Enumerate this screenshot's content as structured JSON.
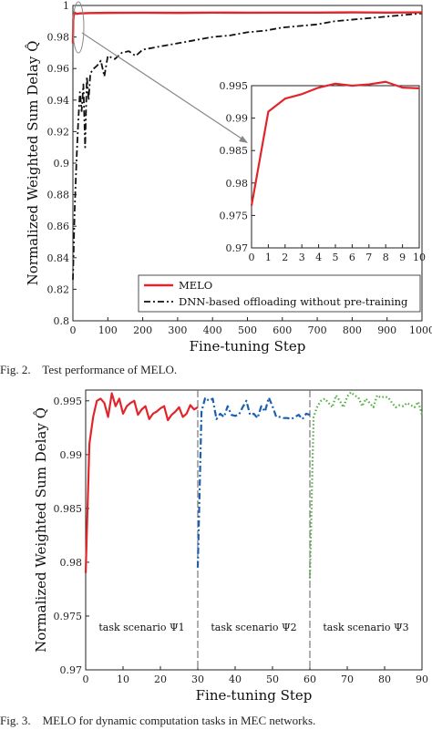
{
  "captions": {
    "fig2": "Fig. 2.    Test performance of MELO.",
    "fig3": "Fig. 3.    MELO for dynamic computation tasks in MEC networks."
  },
  "colors": {
    "melo": "#e2252b",
    "dnn": "#111111",
    "scen1": "#e2252b",
    "scen2": "#1a5fb4",
    "scen3": "#4caf3a",
    "arrow": "#888888",
    "divider": "#777777"
  },
  "chart_data": [
    {
      "type": "line",
      "ylabel": "Normalized Weighted Sum Delay Q̂",
      "xlabel": "Fine-tuning Step",
      "xlim": [
        0,
        1000
      ],
      "ylim": [
        0.8,
        1.0
      ],
      "xticks": [
        0,
        100,
        200,
        300,
        400,
        500,
        600,
        700,
        800,
        900,
        1000
      ],
      "yticks": [
        0.8,
        0.82,
        0.84,
        0.86,
        0.88,
        0.9,
        0.92,
        0.94,
        0.96,
        0.98,
        1
      ],
      "legend": {
        "position": "bottom-right",
        "entries": [
          "MELO",
          "DNN-based offloading without pre-training"
        ]
      },
      "series": [
        {
          "name": "MELO",
          "style": "solid",
          "x": [
            0,
            1,
            2,
            3,
            5,
            10,
            20,
            50,
            100,
            200,
            300,
            400,
            500,
            600,
            700,
            800,
            900,
            1000
          ],
          "values": [
            0.976,
            0.991,
            0.993,
            0.994,
            0.9955,
            0.9947,
            0.995,
            0.9952,
            0.9953,
            0.9954,
            0.9953,
            0.9955,
            0.9954,
            0.9955,
            0.9955,
            0.9956,
            0.9955,
            0.9956
          ]
        },
        {
          "name": "DNN-based offloading without pre-training",
          "style": "dashdot",
          "x": [
            0,
            5,
            10,
            15,
            20,
            25,
            30,
            35,
            40,
            45,
            50,
            60,
            70,
            80,
            90,
            100,
            120,
            140,
            160,
            180,
            200,
            250,
            300,
            350,
            400,
            450,
            500,
            550,
            600,
            650,
            700,
            750,
            800,
            850,
            900,
            950,
            1000
          ],
          "values": [
            0.826,
            0.87,
            0.9,
            0.925,
            0.945,
            0.933,
            0.95,
            0.91,
            0.955,
            0.94,
            0.957,
            0.96,
            0.962,
            0.965,
            0.955,
            0.968,
            0.966,
            0.97,
            0.971,
            0.968,
            0.972,
            0.974,
            0.976,
            0.978,
            0.98,
            0.981,
            0.983,
            0.984,
            0.986,
            0.987,
            0.988,
            0.99,
            0.991,
            0.992,
            0.993,
            0.994,
            0.995
          ]
        }
      ],
      "inset": {
        "xlim": [
          0,
          10
        ],
        "ylim": [
          0.97,
          0.995
        ],
        "xticks": [
          0,
          1,
          2,
          3,
          4,
          5,
          6,
          7,
          8,
          9,
          10
        ],
        "yticks": [
          0.97,
          0.975,
          0.98,
          0.985,
          0.99,
          0.995
        ],
        "series": [
          {
            "name": "MELO",
            "x": [
              0,
              1,
              2,
              3,
              4,
              5,
              6,
              7,
              8,
              9,
              10
            ],
            "values": [
              0.9765,
              0.991,
              0.993,
              0.9937,
              0.9947,
              0.9953,
              0.995,
              0.9952,
              0.9956,
              0.9947,
              0.9946
            ]
          }
        ]
      }
    },
    {
      "type": "line",
      "ylabel": "Normalized Weighted Sum Delay Q̂",
      "xlabel": "Fine-tuning Step",
      "xlim": [
        0,
        90
      ],
      "ylim": [
        0.97,
        0.996
      ],
      "xticks": [
        0,
        10,
        20,
        30,
        40,
        50,
        60,
        70,
        80,
        90
      ],
      "yticks": [
        0.97,
        0.975,
        0.98,
        0.985,
        0.99,
        0.995
      ],
      "dividers": [
        30,
        60
      ],
      "scenario_labels": [
        "task scenario Ψ1",
        "task scenario Ψ2",
        "task scenario Ψ3"
      ],
      "series": [
        {
          "name": "task scenario Ψ1",
          "style": "solid",
          "x": [
            0,
            1,
            2,
            3,
            4,
            5,
            6,
            7,
            8,
            9,
            10,
            11,
            12,
            13,
            14,
            15,
            16,
            17,
            18,
            19,
            20,
            21,
            22,
            23,
            24,
            25,
            26,
            27,
            28,
            29,
            30
          ],
          "values": [
            0.979,
            0.991,
            0.9935,
            0.995,
            0.9952,
            0.9948,
            0.9935,
            0.9957,
            0.9945,
            0.9952,
            0.9938,
            0.9945,
            0.9948,
            0.995,
            0.9937,
            0.9942,
            0.9945,
            0.9933,
            0.9938,
            0.994,
            0.9943,
            0.9945,
            0.9932,
            0.9937,
            0.994,
            0.9944,
            0.9935,
            0.9938,
            0.9946,
            0.9942,
            0.9944
          ]
        },
        {
          "name": "task scenario Ψ2",
          "style": "dashdot",
          "x": [
            30,
            31,
            32,
            33,
            34,
            35,
            36,
            37,
            38,
            39,
            40,
            41,
            42,
            43,
            44,
            45,
            46,
            47,
            48,
            49,
            50,
            51,
            52,
            53,
            54,
            55,
            56,
            57,
            58,
            59,
            60
          ],
          "values": [
            0.9795,
            0.994,
            0.9953,
            0.995,
            0.9952,
            0.9933,
            0.9938,
            0.9935,
            0.9945,
            0.9937,
            0.9936,
            0.9937,
            0.9944,
            0.995,
            0.9937,
            0.9938,
            0.9934,
            0.9945,
            0.994,
            0.9953,
            0.9945,
            0.9935,
            0.9935,
            0.9934,
            0.9934,
            0.9933,
            0.9935,
            0.9937,
            0.9933,
            0.9938,
            0.9937
          ]
        },
        {
          "name": "task scenario Ψ3",
          "style": "dotted",
          "x": [
            60,
            61,
            62,
            63,
            64,
            65,
            66,
            67,
            68,
            69,
            70,
            71,
            72,
            73,
            74,
            75,
            76,
            77,
            78,
            79,
            80,
            81,
            82,
            83,
            84,
            85,
            86,
            87,
            88,
            89,
            90
          ],
          "values": [
            0.9785,
            0.9935,
            0.9945,
            0.995,
            0.9952,
            0.9948,
            0.9944,
            0.9955,
            0.995,
            0.9944,
            0.9954,
            0.9958,
            0.9955,
            0.9953,
            0.9945,
            0.9952,
            0.9948,
            0.9944,
            0.9955,
            0.9953,
            0.9954,
            0.9953,
            0.9948,
            0.9944,
            0.9946,
            0.9945,
            0.9948,
            0.9946,
            0.9944,
            0.9949,
            0.9937
          ]
        }
      ]
    }
  ]
}
